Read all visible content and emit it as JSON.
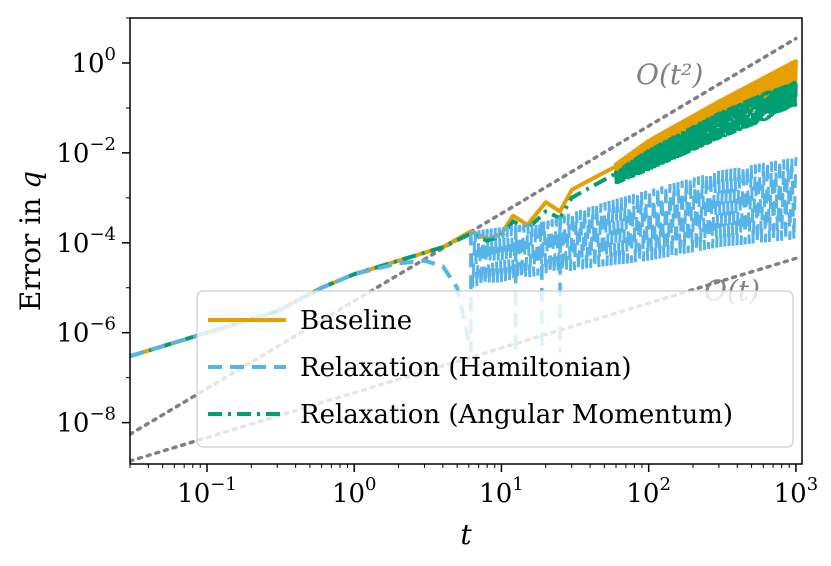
{
  "chart_data": {
    "type": "line",
    "title": "",
    "xlabel": "t",
    "ylabel": "Error in q",
    "xscale": "log",
    "yscale": "log",
    "xlim": [
      0.03,
      1100
    ],
    "ylim": [
      1.2e-09,
      10
    ],
    "grid": false,
    "legend_position": "lower-right",
    "x_ticks": [
      {
        "value": 0.1,
        "base": "10",
        "exp": "−1"
      },
      {
        "value": 1,
        "base": "10",
        "exp": "0"
      },
      {
        "value": 10,
        "base": "10",
        "exp": "1"
      },
      {
        "value": 100,
        "base": "10",
        "exp": "2"
      },
      {
        "value": 1000,
        "base": "10",
        "exp": "3"
      }
    ],
    "y_ticks": [
      {
        "value": 1e-08,
        "base": "10",
        "exp": "−8"
      },
      {
        "value": 1e-06,
        "base": "10",
        "exp": "−6"
      },
      {
        "value": 0.0001,
        "base": "10",
        "exp": "−4"
      },
      {
        "value": 0.01,
        "base": "10",
        "exp": "−2"
      },
      {
        "value": 1,
        "base": "10",
        "exp": "0"
      }
    ],
    "reference_lines": [
      {
        "name": "O(t^2)",
        "label": "O(t²)",
        "x": [
          0.03,
          1000
        ],
        "y": [
          5.5e-09,
          3.5
        ],
        "color": "#808080"
      },
      {
        "name": "O(t)",
        "label": "O(t)",
        "x": [
          0.03,
          1000
        ],
        "y": [
          1.4e-09,
          4.5e-05
        ],
        "color": "#808080"
      }
    ],
    "series": [
      {
        "name": "Baseline",
        "color": "#E69F00",
        "style": "solid",
        "x": [
          0.03,
          0.1,
          0.3,
          0.6,
          1,
          2,
          4,
          6.2,
          8,
          10,
          12,
          15,
          20,
          25,
          30,
          40,
          60,
          100,
          200,
          400,
          600,
          1000
        ],
        "y": [
          3e-07,
          1e-06,
          3e-06,
          1e-05,
          2e-05,
          4e-05,
          8e-05,
          0.00018,
          0.00012,
          0.00016,
          0.0004,
          0.00025,
          0.0008,
          0.0005,
          0.0015,
          0.0025,
          0.005,
          0.015,
          0.05,
          0.2,
          0.4,
          1.0
        ],
        "band_upper": [
          {
            "x": 60,
            "y": 0.006
          },
          {
            "x": 100,
            "y": 0.02
          },
          {
            "x": 300,
            "y": 0.15
          },
          {
            "x": 1000,
            "y": 1.2
          }
        ],
        "band_lower": [
          {
            "x": 60,
            "y": 0.003
          },
          {
            "x": 100,
            "y": 0.006
          },
          {
            "x": 300,
            "y": 0.04
          },
          {
            "x": 1000,
            "y": 0.25
          }
        ]
      },
      {
        "name": "Relaxation (Hamiltonian)",
        "color": "#56B4E9",
        "style": "dashed",
        "x": [
          0.03,
          0.1,
          0.3,
          0.6,
          1,
          2,
          3,
          4,
          5,
          6.2
        ],
        "y": [
          3e-07,
          1e-06,
          3e-06,
          1e-05,
          2e-05,
          3.5e-05,
          4e-05,
          3e-05,
          1e-05,
          4e-07
        ],
        "band_upper": [
          {
            "x": 6.2,
            "y": 0.00018
          },
          {
            "x": 20,
            "y": 0.0003
          },
          {
            "x": 50,
            "y": 0.0008
          },
          {
            "x": 100,
            "y": 0.0015
          },
          {
            "x": 300,
            "y": 0.004
          },
          {
            "x": 1000,
            "y": 0.008
          }
        ],
        "band_lower": [
          {
            "x": 6.2,
            "y": 1e-05
          },
          {
            "x": 20,
            "y": 2e-05
          },
          {
            "x": 50,
            "y": 3e-05
          },
          {
            "x": 100,
            "y": 4e-05
          },
          {
            "x": 300,
            "y": 8e-05
          },
          {
            "x": 1000,
            "y": 0.00012
          }
        ],
        "dips": [
          6.2,
          12.5,
          18.8,
          25
        ]
      },
      {
        "name": "Relaxation (Angular Momentum)",
        "color": "#009E73",
        "style": "dashdot",
        "x": [
          0.03,
          0.1,
          0.3,
          0.6,
          1,
          2,
          4,
          6.2,
          8,
          10,
          12,
          15,
          20,
          25,
          30,
          40,
          60,
          100,
          200,
          400,
          600,
          1000
        ],
        "y": [
          3e-07,
          1e-06,
          3e-06,
          1e-05,
          2e-05,
          4e-05,
          8e-05,
          0.00016,
          0.00011,
          0.00014,
          0.0003,
          0.0002,
          0.0005,
          0.00035,
          0.001,
          0.0017,
          0.0035,
          0.01,
          0.03,
          0.1,
          0.2,
          0.35
        ],
        "band_upper": [
          {
            "x": 60,
            "y": 0.004
          },
          {
            "x": 100,
            "y": 0.012
          },
          {
            "x": 300,
            "y": 0.08
          },
          {
            "x": 1000,
            "y": 0.45
          }
        ],
        "band_lower": [
          {
            "x": 60,
            "y": 0.002
          },
          {
            "x": 100,
            "y": 0.004
          },
          {
            "x": 300,
            "y": 0.02
          },
          {
            "x": 1000,
            "y": 0.1
          }
        ]
      }
    ],
    "legend": [
      {
        "label": "Baseline",
        "color": "#E69F00",
        "style": "solid"
      },
      {
        "label": "Relaxation (Hamiltonian)",
        "color": "#56B4E9",
        "style": "dashed"
      },
      {
        "label": "Relaxation (Angular Momentum)",
        "color": "#009E73",
        "style": "dashdot"
      }
    ]
  }
}
